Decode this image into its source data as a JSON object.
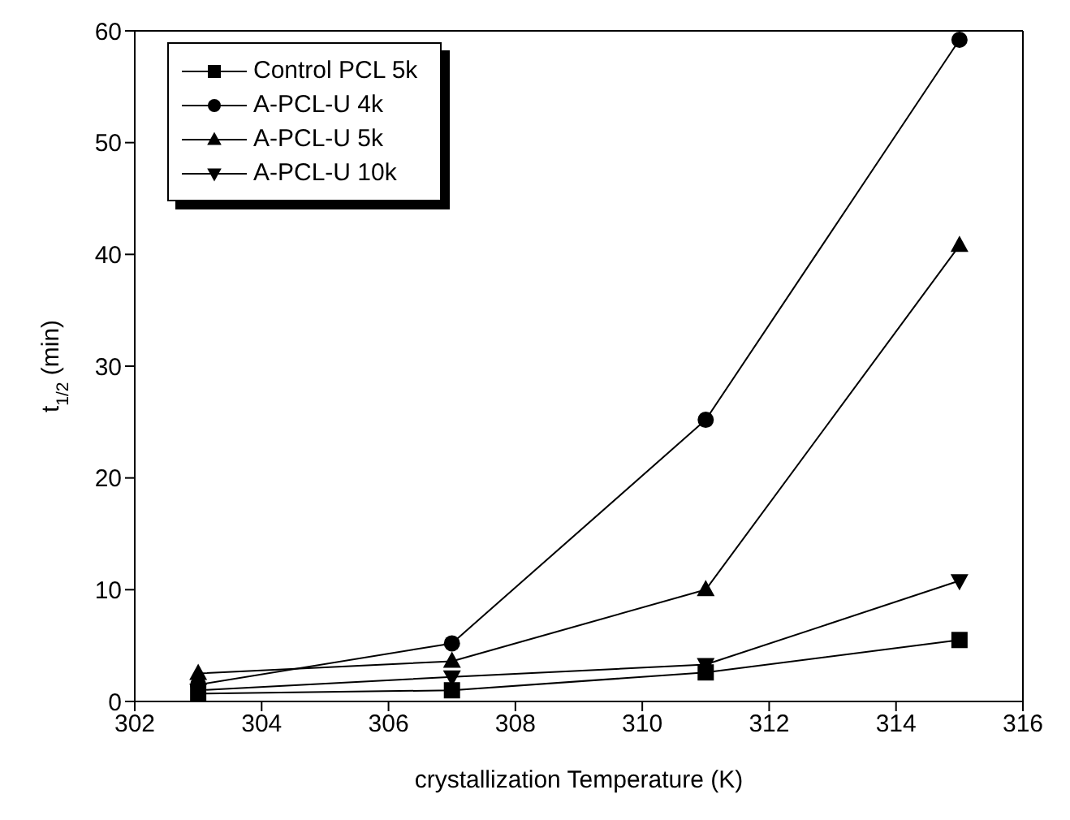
{
  "chart_data": {
    "type": "line",
    "xlabel": "crystallization Temperature (K)",
    "ylabel": "t$_{1/2}$ (min)",
    "x": [
      303,
      307,
      311,
      315
    ],
    "series": [
      {
        "name": "Control PCL 5k",
        "color": "#000000",
        "marker": "square",
        "values": [
          0.7,
          1.0,
          2.6,
          5.5
        ]
      },
      {
        "name": "A-PCL-U 4k",
        "color": "#000000",
        "marker": "circle",
        "values": [
          1.5,
          5.2,
          25.2,
          59.2
        ]
      },
      {
        "name": "A-PCL-U 5k",
        "color": "#000000",
        "marker": "triangle",
        "values": [
          2.5,
          3.6,
          10,
          40.8
        ]
      },
      {
        "name": "A-PCL-U 10k",
        "color": "#000000",
        "marker": "triangle-down",
        "values": [
          1.0,
          2.2,
          3.3,
          10.8
        ]
      }
    ],
    "xlim": [
      302,
      316
    ],
    "xticks": [
      302,
      304,
      306,
      308,
      310,
      312,
      314,
      316
    ],
    "ylim": [
      0,
      60
    ],
    "yticks": [
      0,
      10,
      20,
      30,
      40,
      50,
      60
    ],
    "grid": false,
    "legend": "top left",
    "line_style": "solid"
  }
}
